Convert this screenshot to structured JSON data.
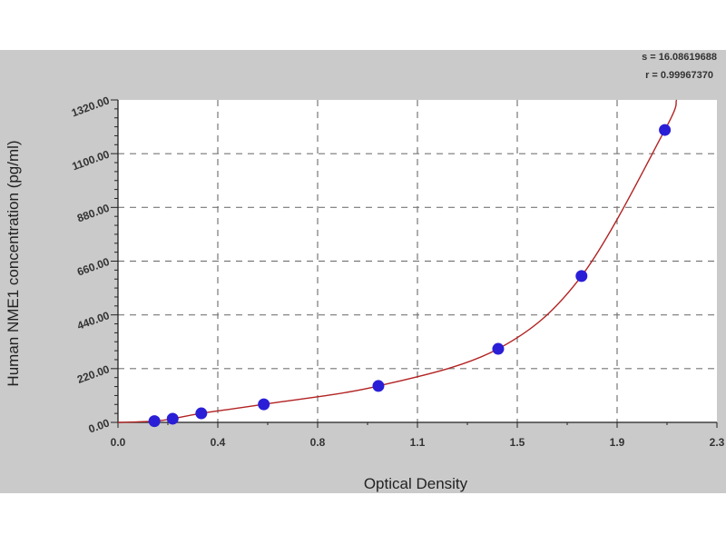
{
  "chart_data": {
    "type": "scatter",
    "xlabel": "Optical Density",
    "ylabel": "Human NME1 concentration (pg/ml)",
    "xlim": [
      0,
      2.3
    ],
    "ylim": [
      0,
      1320
    ],
    "x_ticks": [
      "0.0",
      "0.4",
      "0.8",
      "1.1",
      "1.5",
      "1.9",
      "2.3"
    ],
    "y_ticks": [
      "0.00",
      "220.00",
      "440.00",
      "660.00",
      "880.00",
      "1100.00",
      "1320.00"
    ],
    "grid": true,
    "annotations": [
      "s = 16.08619688",
      "r = 0.99967370"
    ],
    "points": [
      {
        "x": 0.14,
        "y": 5
      },
      {
        "x": 0.21,
        "y": 15
      },
      {
        "x": 0.32,
        "y": 37
      },
      {
        "x": 0.56,
        "y": 74
      },
      {
        "x": 1.0,
        "y": 149
      },
      {
        "x": 1.46,
        "y": 301
      },
      {
        "x": 1.78,
        "y": 599
      },
      {
        "x": 2.1,
        "y": 1197
      }
    ],
    "colors": {
      "points": "#2a1fd6",
      "curve": "#b22222",
      "background": "#cacaca",
      "plot": "#ffffff"
    }
  }
}
